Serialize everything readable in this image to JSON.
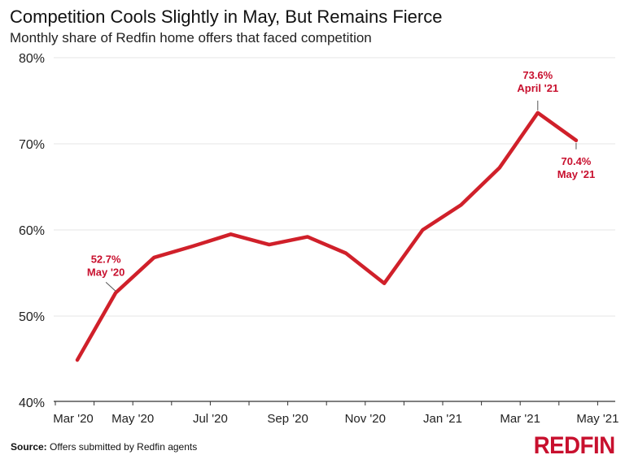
{
  "chart_data": {
    "type": "line",
    "title": "Competition Cools Slightly in May, But Remains Fierce",
    "subtitle": "Monthly share of Redfin home offers that faced competition",
    "xlabel": "",
    "ylabel": "",
    "x": [
      "Apr '20",
      "May '20",
      "Jun '20",
      "Jul '20",
      "Aug '20",
      "Sep '20",
      "Oct '20",
      "Nov '20",
      "Dec '20",
      "Jan '21",
      "Feb '21",
      "Mar '21",
      "Apr '21",
      "May '21"
    ],
    "series": [
      {
        "values": [
          44.9,
          52.7,
          56.8,
          58.1,
          59.5,
          58.3,
          59.2,
          57.3,
          53.8,
          60.0,
          62.9,
          67.2,
          73.6,
          70.4
        ],
        "color": "#d0202a"
      }
    ],
    "ylim": [
      40,
      80
    ],
    "yticks": [
      "40%",
      "50%",
      "60%",
      "70%",
      "80%"
    ],
    "ytick_values": [
      40,
      50,
      60,
      70,
      80
    ],
    "xtick_labels": [
      "Mar '20",
      "May '20",
      "Jul '20",
      "Sep '20",
      "Nov '20",
      "Jan '21",
      "Mar '21",
      "May '21"
    ],
    "grid": true,
    "annotations": [
      {
        "index": 1,
        "value": "52.7%",
        "label": "May '20",
        "position": "above-left"
      },
      {
        "index": 12,
        "value": "73.6%",
        "label": "April '21",
        "position": "above"
      },
      {
        "index": 13,
        "value": "70.4%",
        "label": "May '21",
        "position": "below"
      }
    ]
  },
  "source": {
    "label": "Source:",
    "text": " Offers submitted by Redfin agents"
  },
  "logo": "REDFIN",
  "colors": {
    "line": "#d0202a",
    "annotation": "#c8102e",
    "brand": "#c8102e"
  }
}
